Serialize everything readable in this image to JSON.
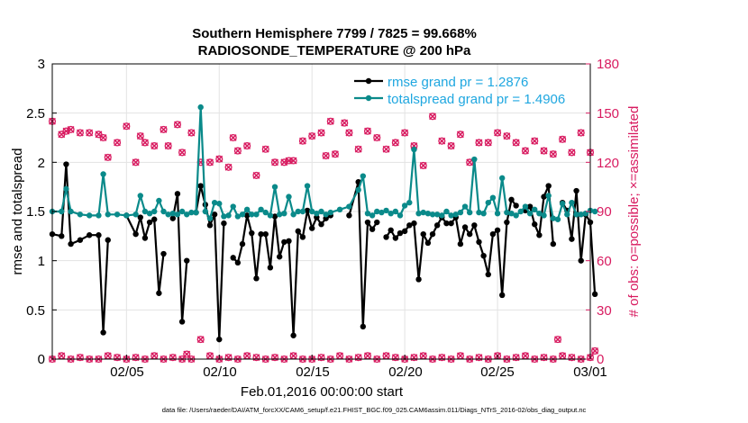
{
  "chart_data": {
    "type": "line",
    "title": "Southern Hemisphere 7799 / 7825 = 99.668%",
    "subtitle": "RADIOSONDE_TEMPERATURE @ 200 hPa",
    "xlabel": "Feb.01,2016 00:00:00 start",
    "ylabel_left": "rmse and totalspread",
    "ylabel_right": "# of obs: o=possible; ×=assimilated",
    "footnote": "data file: /Users/raeder/DAI/ATM_forcXX/CAM6_setup/f.e21.FHIST_BGC.f09_025.CAM6assim.011/Diags_NTrS_2016-02/obs_diag_output.nc",
    "x_tick_labels": [
      "02/05",
      "02/10",
      "02/15",
      "02/20",
      "02/25",
      "03/01"
    ],
    "x_ticks_day": [
      5,
      10,
      15,
      20,
      25,
      30
    ],
    "xlim_day": [
      1,
      30
    ],
    "ylim_left": [
      0,
      3
    ],
    "yticks_left": [
      "0",
      "0.5",
      "1",
      "1.5",
      "2",
      "2.5",
      "3"
    ],
    "ylim_right": [
      0,
      180
    ],
    "yticks_right": [
      "0",
      "30",
      "60",
      "90",
      "120",
      "150",
      "180"
    ],
    "colors": {
      "rmse": "#000000",
      "spread": "#0a8a8a",
      "obs": "#d81b60",
      "legend_text": "#1fa7e0"
    },
    "series": [
      {
        "name": "rmse grand pr = 1.2876",
        "axis": "left",
        "points": [
          [
            1.0,
            1.27
          ],
          [
            1.5,
            1.25
          ],
          [
            1.75,
            1.98
          ],
          [
            2.0,
            1.17
          ],
          [
            2.5,
            1.21
          ],
          [
            3.0,
            1.26
          ],
          [
            3.5,
            1.26
          ],
          [
            3.75,
            0.27
          ],
          [
            4.0,
            1.21
          ],
          [
            4.5,
            null
          ],
          [
            5.0,
            1.46
          ],
          [
            5.5,
            1.27
          ],
          [
            5.75,
            1.44
          ],
          [
            6.0,
            1.23
          ],
          [
            6.25,
            1.39
          ],
          [
            6.5,
            1.42
          ],
          [
            6.75,
            0.67
          ],
          [
            7.0,
            1.07
          ],
          [
            7.25,
            null
          ],
          [
            7.5,
            1.43
          ],
          [
            7.75,
            1.68
          ],
          [
            8.0,
            0.38
          ],
          [
            8.25,
            1.0
          ],
          [
            8.5,
            null
          ],
          [
            8.75,
            1.49
          ],
          [
            9.0,
            1.76
          ],
          [
            9.25,
            1.57
          ],
          [
            9.5,
            1.36
          ],
          [
            9.75,
            1.47
          ],
          [
            10.0,
            0.2
          ],
          [
            10.25,
            1.38
          ],
          [
            10.5,
            null
          ],
          [
            10.75,
            1.03
          ],
          [
            11.0,
            0.98
          ],
          [
            11.25,
            1.17
          ],
          [
            11.5,
            1.46
          ],
          [
            11.75,
            1.28
          ],
          [
            12.0,
            0.82
          ],
          [
            12.25,
            1.27
          ],
          [
            12.5,
            1.27
          ],
          [
            12.75,
            0.93
          ],
          [
            13.0,
            1.45
          ],
          [
            13.25,
            1.04
          ],
          [
            13.5,
            1.19
          ],
          [
            13.75,
            1.2
          ],
          [
            14.0,
            0.24
          ],
          [
            14.25,
            1.3
          ],
          [
            14.5,
            1.24
          ],
          [
            14.75,
            1.51
          ],
          [
            15.0,
            1.33
          ],
          [
            15.25,
            1.44
          ],
          [
            15.5,
            1.37
          ],
          [
            15.75,
            1.43
          ],
          [
            16.0,
            1.46
          ],
          [
            16.25,
            null
          ],
          [
            17.0,
            1.46
          ],
          [
            17.5,
            1.8
          ],
          [
            17.75,
            0.33
          ],
          [
            18.0,
            1.39
          ],
          [
            18.25,
            1.32
          ],
          [
            18.5,
            1.39
          ],
          [
            18.75,
            null
          ],
          [
            19.0,
            1.24
          ],
          [
            19.25,
            1.31
          ],
          [
            19.5,
            1.23
          ],
          [
            19.75,
            1.28
          ],
          [
            20.0,
            1.3
          ],
          [
            20.25,
            1.36
          ],
          [
            20.5,
            1.38
          ],
          [
            20.75,
            0.81
          ],
          [
            21.0,
            1.27
          ],
          [
            21.25,
            1.18
          ],
          [
            21.5,
            1.27
          ],
          [
            21.75,
            1.36
          ],
          [
            22.0,
            1.44
          ],
          [
            22.25,
            1.38
          ],
          [
            22.5,
            1.38
          ],
          [
            22.75,
            1.44
          ],
          [
            23.0,
            1.17
          ],
          [
            23.25,
            1.34
          ],
          [
            23.5,
            1.27
          ],
          [
            23.75,
            1.36
          ],
          [
            24.0,
            1.19
          ],
          [
            24.25,
            1.05
          ],
          [
            24.5,
            0.86
          ],
          [
            24.75,
            1.27
          ],
          [
            25.0,
            1.31
          ],
          [
            25.25,
            0.65
          ],
          [
            25.5,
            1.39
          ],
          [
            25.75,
            1.62
          ],
          [
            26.0,
            1.56
          ],
          [
            26.25,
            null
          ],
          [
            26.5,
            1.51
          ],
          [
            26.75,
            1.55
          ],
          [
            27.0,
            1.37
          ],
          [
            27.25,
            1.26
          ],
          [
            27.5,
            1.65
          ],
          [
            27.75,
            1.76
          ],
          [
            28.0,
            1.17
          ],
          [
            28.25,
            null
          ],
          [
            28.5,
            1.59
          ],
          [
            28.75,
            1.51
          ],
          [
            29.0,
            1.22
          ],
          [
            29.25,
            1.71
          ],
          [
            29.5,
            1.0
          ],
          [
            29.75,
            1.47
          ],
          [
            30.0,
            1.39
          ],
          [
            30.25,
            0.66
          ]
        ]
      },
      {
        "name": "totalspread grand pr = 1.4906",
        "axis": "left",
        "points": [
          [
            1.0,
            1.5
          ],
          [
            1.5,
            1.5
          ],
          [
            1.75,
            1.73
          ],
          [
            2.0,
            1.5
          ],
          [
            2.5,
            1.47
          ],
          [
            3.0,
            1.46
          ],
          [
            3.5,
            1.46
          ],
          [
            3.75,
            1.88
          ],
          [
            4.0,
            1.47
          ],
          [
            4.5,
            1.47
          ],
          [
            5.0,
            1.46
          ],
          [
            5.5,
            1.47
          ],
          [
            5.75,
            1.66
          ],
          [
            6.0,
            1.5
          ],
          [
            6.25,
            1.48
          ],
          [
            6.5,
            1.5
          ],
          [
            6.75,
            1.61
          ],
          [
            7.0,
            1.5
          ],
          [
            7.25,
            1.47
          ],
          [
            7.5,
            1.48
          ],
          [
            7.75,
            1.47
          ],
          [
            8.0,
            1.5
          ],
          [
            8.25,
            1.47
          ],
          [
            8.5,
            1.49
          ],
          [
            8.75,
            1.49
          ],
          [
            9.0,
            2.56
          ],
          [
            9.25,
            1.5
          ],
          [
            9.5,
            1.43
          ],
          [
            9.75,
            1.59
          ],
          [
            10.0,
            1.58
          ],
          [
            10.25,
            1.45
          ],
          [
            10.5,
            1.46
          ],
          [
            10.75,
            1.55
          ],
          [
            11.0,
            1.45
          ],
          [
            11.25,
            1.47
          ],
          [
            11.5,
            1.52
          ],
          [
            11.75,
            1.47
          ],
          [
            12.0,
            1.47
          ],
          [
            12.25,
            1.52
          ],
          [
            12.5,
            1.49
          ],
          [
            12.75,
            1.46
          ],
          [
            13.0,
            1.75
          ],
          [
            13.25,
            1.47
          ],
          [
            13.5,
            1.48
          ],
          [
            13.75,
            1.65
          ],
          [
            14.0,
            1.47
          ],
          [
            14.25,
            1.5
          ],
          [
            14.5,
            1.5
          ],
          [
            14.75,
            1.76
          ],
          [
            15.0,
            1.5
          ],
          [
            15.25,
            1.48
          ],
          [
            15.5,
            1.5
          ],
          [
            15.75,
            1.47
          ],
          [
            16.0,
            1.49
          ],
          [
            16.5,
            1.52
          ],
          [
            17.0,
            1.55
          ],
          [
            17.5,
            1.72
          ],
          [
            17.75,
            1.86
          ],
          [
            18.0,
            1.48
          ],
          [
            18.25,
            1.46
          ],
          [
            18.5,
            1.5
          ],
          [
            18.75,
            1.49
          ],
          [
            19.0,
            1.51
          ],
          [
            19.25,
            1.48
          ],
          [
            19.5,
            1.5
          ],
          [
            19.75,
            1.46
          ],
          [
            20.0,
            1.56
          ],
          [
            20.25,
            1.59
          ],
          [
            20.5,
            2.13
          ],
          [
            20.75,
            1.48
          ],
          [
            21.0,
            1.49
          ],
          [
            21.25,
            1.48
          ],
          [
            21.5,
            1.47
          ],
          [
            21.75,
            1.47
          ],
          [
            22.0,
            1.46
          ],
          [
            22.25,
            1.5
          ],
          [
            22.5,
            1.46
          ],
          [
            22.75,
            1.47
          ],
          [
            23.0,
            1.49
          ],
          [
            23.25,
            1.55
          ],
          [
            23.5,
            1.49
          ],
          [
            23.75,
            2.03
          ],
          [
            24.0,
            1.49
          ],
          [
            24.25,
            1.48
          ],
          [
            24.5,
            1.59
          ],
          [
            24.75,
            1.64
          ],
          [
            25.0,
            1.48
          ],
          [
            25.25,
            1.84
          ],
          [
            25.5,
            1.49
          ],
          [
            25.75,
            1.48
          ],
          [
            26.0,
            1.46
          ],
          [
            26.25,
            1.5
          ],
          [
            26.5,
            1.55
          ],
          [
            26.75,
            1.48
          ],
          [
            27.0,
            1.52
          ],
          [
            27.25,
            1.48
          ],
          [
            27.5,
            1.46
          ],
          [
            27.75,
            1.66
          ],
          [
            28.0,
            1.43
          ],
          [
            28.25,
            1.42
          ],
          [
            28.5,
            1.58
          ],
          [
            28.75,
            1.47
          ],
          [
            29.0,
            1.59
          ],
          [
            29.25,
            1.47
          ],
          [
            29.5,
            1.47
          ],
          [
            29.75,
            1.48
          ],
          [
            30.0,
            1.51
          ],
          [
            30.25,
            1.5
          ]
        ]
      }
    ],
    "obs_possible_top": [
      [
        1.0,
        145
      ],
      [
        1.5,
        137
      ],
      [
        1.75,
        139
      ],
      [
        2.0,
        140
      ],
      [
        2.5,
        138
      ],
      [
        3.0,
        138
      ],
      [
        3.5,
        137
      ],
      [
        3.75,
        135
      ],
      [
        4.0,
        123
      ],
      [
        4.5,
        132
      ],
      [
        5.0,
        142
      ],
      [
        5.5,
        120
      ],
      [
        5.75,
        136
      ],
      [
        6.0,
        132
      ],
      [
        6.5,
        130
      ],
      [
        7.0,
        140
      ],
      [
        7.25,
        130
      ],
      [
        7.75,
        143
      ],
      [
        8.0,
        126
      ],
      [
        8.5,
        138
      ],
      [
        9.0,
        120
      ],
      [
        9.5,
        120
      ],
      [
        10.0,
        122
      ],
      [
        10.5,
        117
      ],
      [
        10.75,
        135
      ],
      [
        11.0,
        127
      ],
      [
        11.5,
        130
      ],
      [
        12.0,
        112
      ],
      [
        12.5,
        128
      ],
      [
        13.0,
        120
      ],
      [
        13.5,
        120
      ],
      [
        13.75,
        121
      ],
      [
        14.0,
        121
      ],
      [
        14.5,
        133
      ],
      [
        15.0,
        136
      ],
      [
        15.5,
        138
      ],
      [
        15.75,
        124
      ],
      [
        16.0,
        145
      ],
      [
        16.25,
        125
      ],
      [
        16.75,
        144
      ],
      [
        17.0,
        138
      ],
      [
        17.5,
        128
      ],
      [
        18.0,
        139
      ],
      [
        18.5,
        135
      ],
      [
        19.0,
        128
      ],
      [
        19.5,
        132
      ],
      [
        20.0,
        138
      ],
      [
        20.5,
        130
      ],
      [
        21.0,
        118
      ],
      [
        21.5,
        148
      ],
      [
        22.0,
        133
      ],
      [
        22.5,
        130
      ],
      [
        23.0,
        137
      ],
      [
        23.5,
        120
      ],
      [
        24.0,
        132
      ],
      [
        24.5,
        132
      ],
      [
        25.0,
        138
      ],
      [
        25.5,
        136
      ],
      [
        26.0,
        132
      ],
      [
        26.5,
        127
      ],
      [
        27.0,
        133
      ],
      [
        27.5,
        127
      ],
      [
        28.0,
        125
      ],
      [
        28.5,
        134
      ],
      [
        29.0,
        126
      ],
      [
        29.5,
        138
      ],
      [
        30.0,
        126
      ]
    ],
    "obs_possible_bottom": [
      [
        1.0,
        0
      ],
      [
        1.5,
        2
      ],
      [
        2.0,
        0
      ],
      [
        2.5,
        1
      ],
      [
        3.0,
        0
      ],
      [
        3.5,
        0
      ],
      [
        4.0,
        2
      ],
      [
        4.5,
        1
      ],
      [
        5.0,
        0
      ],
      [
        5.5,
        1
      ],
      [
        6.0,
        0
      ],
      [
        6.5,
        2
      ],
      [
        7.0,
        0
      ],
      [
        7.5,
        1
      ],
      [
        8.0,
        0
      ],
      [
        8.25,
        3
      ],
      [
        8.5,
        0
      ],
      [
        9.0,
        12
      ],
      [
        9.5,
        2
      ],
      [
        10.0,
        0
      ],
      [
        10.5,
        1
      ],
      [
        11.0,
        0
      ],
      [
        11.5,
        2
      ],
      [
        12.0,
        1
      ],
      [
        12.5,
        0
      ],
      [
        13.0,
        1
      ],
      [
        13.5,
        0
      ],
      [
        14.0,
        2
      ],
      [
        14.5,
        0
      ],
      [
        15.0,
        0
      ],
      [
        15.5,
        1
      ],
      [
        16.0,
        0
      ],
      [
        16.5,
        2
      ],
      [
        17.0,
        0
      ],
      [
        17.5,
        1
      ],
      [
        18.0,
        2
      ],
      [
        18.5,
        0
      ],
      [
        19.0,
        2
      ],
      [
        19.5,
        1
      ],
      [
        20.0,
        0
      ],
      [
        20.5,
        1
      ],
      [
        21.0,
        2
      ],
      [
        21.5,
        0
      ],
      [
        22.0,
        1
      ],
      [
        22.5,
        0
      ],
      [
        23.0,
        2
      ],
      [
        23.5,
        0
      ],
      [
        24.0,
        1
      ],
      [
        24.5,
        0
      ],
      [
        25.0,
        2
      ],
      [
        25.5,
        0
      ],
      [
        26.0,
        1
      ],
      [
        26.5,
        2
      ],
      [
        27.0,
        0
      ],
      [
        27.5,
        1
      ],
      [
        28.0,
        0
      ],
      [
        28.25,
        12
      ],
      [
        28.5,
        2
      ],
      [
        29.0,
        1
      ],
      [
        29.5,
        0
      ],
      [
        30.0,
        1
      ],
      [
        30.25,
        5
      ]
    ],
    "legend_position": "top-right",
    "grid": true
  }
}
